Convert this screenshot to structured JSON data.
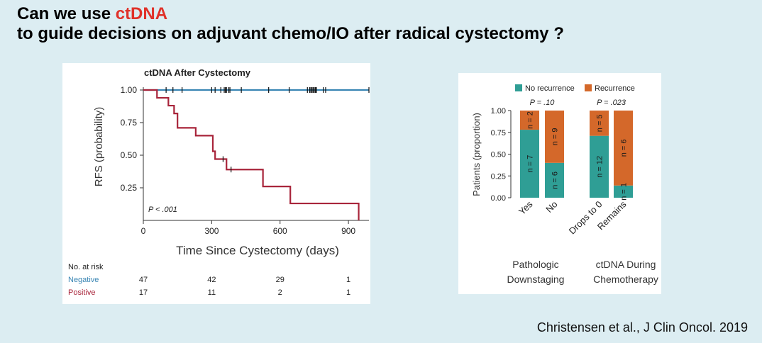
{
  "slide": {
    "title_line1_prefix": "Can we use ",
    "title_highlight": "ctDNA",
    "title_line2": "to guide decisions on adjuvant chemo/IO after radical cystectomy ?",
    "citation": "Christensen et al., J Clin Oncol. 2019",
    "highlight_color": "#e0322a"
  },
  "chart_data": [
    {
      "type": "line",
      "subtype": "kaplan-meier",
      "title": "ctDNA After Cystectomy",
      "xlabel": "Time Since Cystectomy (days)",
      "ylabel": "RFS (probability)",
      "xlim": [
        0,
        990
      ],
      "ylim": [
        0,
        1.0
      ],
      "x_ticks": [
        "0",
        "300",
        "600",
        "900"
      ],
      "y_ticks": [
        "1.00",
        "0.75",
        "0.50",
        "0.25"
      ],
      "annotation": "P < .001",
      "series": [
        {
          "name": "Negative",
          "color": "#3a86b4",
          "x": [
            0,
            990
          ],
          "y": [
            1.0,
            1.0
          ],
          "censor_times": [
            100,
            130,
            170,
            300,
            315,
            340,
            355,
            360,
            365,
            375,
            380,
            430,
            550,
            640,
            720,
            730,
            735,
            740,
            745,
            750,
            755,
            760,
            790,
            800,
            990
          ]
        },
        {
          "name": "Positive",
          "color": "#a8243a",
          "x": [
            0,
            60,
            110,
            135,
            150,
            230,
            305,
            315,
            330,
            365,
            525,
            645,
            945,
            945
          ],
          "y": [
            1.0,
            0.94,
            0.88,
            0.82,
            0.71,
            0.65,
            0.53,
            0.47,
            0.47,
            0.39,
            0.26,
            0.13,
            0.13,
            0.0
          ],
          "censor_times": [
            350,
            385
          ]
        }
      ],
      "at_risk": {
        "header": "No. at risk",
        "rows": [
          {
            "label": "Negative",
            "values": [
              "47",
              "42",
              "29",
              "1"
            ]
          },
          {
            "label": "Positive",
            "values": [
              "17",
              "11",
              "2",
              "1"
            ]
          }
        ]
      }
    },
    {
      "type": "bar",
      "subtype": "stacked-proportion",
      "ylabel": "Patients (proportion)",
      "ylim": [
        0,
        1.0
      ],
      "y_ticks": [
        "1.00",
        "0.75",
        "0.50",
        "0.25",
        "0.00"
      ],
      "legend": [
        {
          "name": "No recurrence",
          "color": "#2f9e95"
        },
        {
          "name": "Recurrence",
          "color": "#d4682a"
        }
      ],
      "groups": [
        {
          "label_line1": "Pathologic",
          "label_line2": "Downstaging",
          "p_value": "P = .10",
          "categories": [
            "Yes",
            "No"
          ],
          "no_recurrence": [
            0.78,
            0.4
          ],
          "recurrence": [
            0.22,
            0.6
          ],
          "n_no_recurrence": [
            "n = 7",
            "n = 6"
          ],
          "n_recurrence": [
            "n = 2",
            "n = 9"
          ]
        },
        {
          "label_line1": "ctDNA During",
          "label_line2": "Chemotherapy",
          "p_value": "P = .023",
          "categories": [
            "Drops to 0",
            "Remains"
          ],
          "no_recurrence": [
            0.71,
            0.14
          ],
          "recurrence": [
            0.29,
            0.86
          ],
          "n_no_recurrence": [
            "n = 12",
            "n = 1"
          ],
          "n_recurrence": [
            "n = 5",
            "n = 6"
          ]
        }
      ]
    }
  ]
}
